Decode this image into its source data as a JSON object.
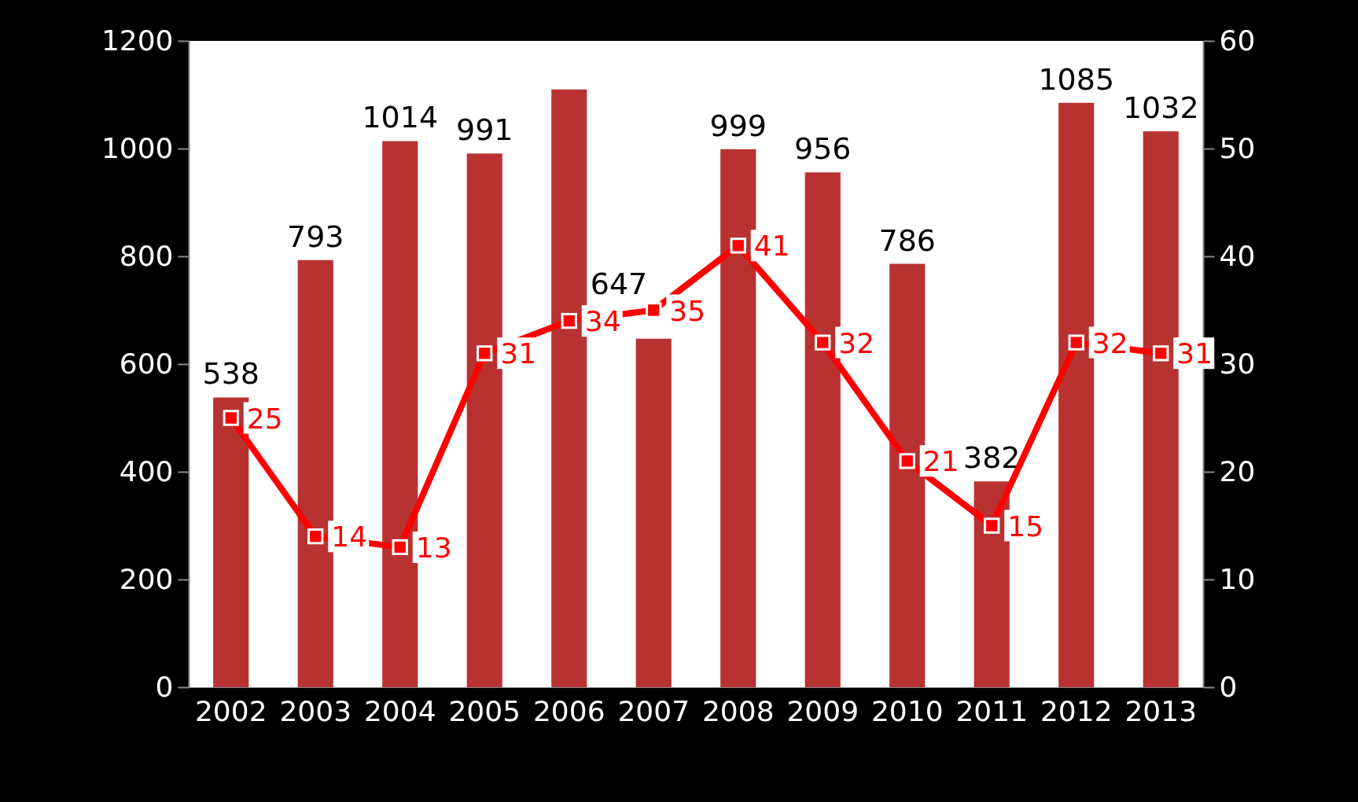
{
  "chart_data": {
    "type": "bar",
    "categories": [
      "2002",
      "2003",
      "2004",
      "2005",
      "2006",
      "2007",
      "2008",
      "2009",
      "2010",
      "2011",
      "2012",
      "2013"
    ],
    "series": [
      {
        "color": "#b83232",
        "values": [
          538,
          793,
          1014,
          991,
          1110,
          647,
          999,
          956,
          786,
          382,
          1085,
          1032
        ],
        "value_labels": [
          "538",
          "793",
          "1014",
          "991",
          null,
          "647",
          "999",
          "956",
          "786",
          "382",
          "1085",
          "1032"
        ]
      },
      {
        "type": "line",
        "color": "#ff0000",
        "axis": "y2",
        "marker": "square",
        "data_labels": true,
        "values": [
          25,
          14,
          13,
          31,
          34,
          35,
          41,
          32,
          21,
          15,
          32,
          31
        ]
      }
    ],
    "ylim": [
      0,
      1200
    ],
    "yticks": [
      0,
      200,
      400,
      600,
      800,
      1000,
      1200
    ],
    "y2lim": [
      0,
      60
    ],
    "y2ticks": [
      0,
      10,
      20,
      30,
      40,
      50,
      60
    ],
    "grid": false
  }
}
